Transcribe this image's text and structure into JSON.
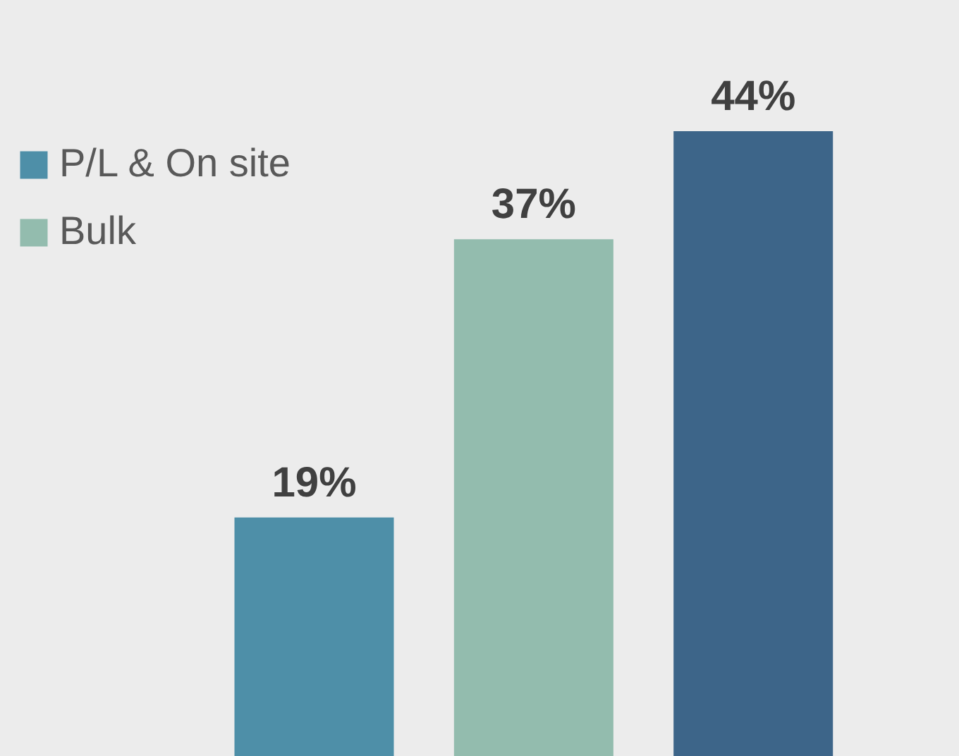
{
  "chart_data": {
    "type": "bar",
    "categories": [
      null,
      null,
      null
    ],
    "series": [
      {
        "name": "P/L & On site",
        "color": "#4e8fa8",
        "values": [
          19,
          null,
          null
        ],
        "value_labels": [
          "19%",
          null,
          null
        ]
      },
      {
        "name": "Bulk",
        "color": "#93bcae",
        "values": [
          null,
          37,
          null
        ],
        "value_labels": [
          null,
          "37%",
          null
        ]
      },
      {
        "color": "#3d6589",
        "values": [
          null,
          null,
          44
        ],
        "value_labels": [
          null,
          null,
          "44%"
        ]
      }
    ],
    "stacked": true,
    "tick_labels": false,
    "legend": "top left"
  }
}
